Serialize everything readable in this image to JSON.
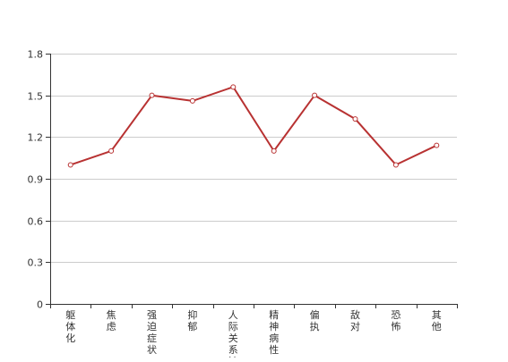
{
  "chart_data": {
    "type": "line",
    "title": "",
    "xlabel": "",
    "ylabel": "",
    "categories": [
      "躯体化",
      "焦虑",
      "强迫症状",
      "抑郁",
      "人际关系敏",
      "精神病性",
      "偏执",
      "敌对",
      "恐怖",
      "其他"
    ],
    "y_ticks": [
      "0",
      "0.3",
      "0.6",
      "0.9",
      "1.2",
      "1.5",
      "1.8"
    ],
    "ylim": [
      0,
      1.8
    ],
    "grid": true,
    "legend": "none",
    "series": [
      {
        "values": [
          1.0,
          1.1,
          1.5,
          1.46,
          1.56,
          1.1,
          1.5,
          1.33,
          1.0,
          1.14
        ]
      }
    ],
    "colors": {
      "line": "#b83232",
      "grid": "#cccccc",
      "axis": "#333333"
    }
  }
}
